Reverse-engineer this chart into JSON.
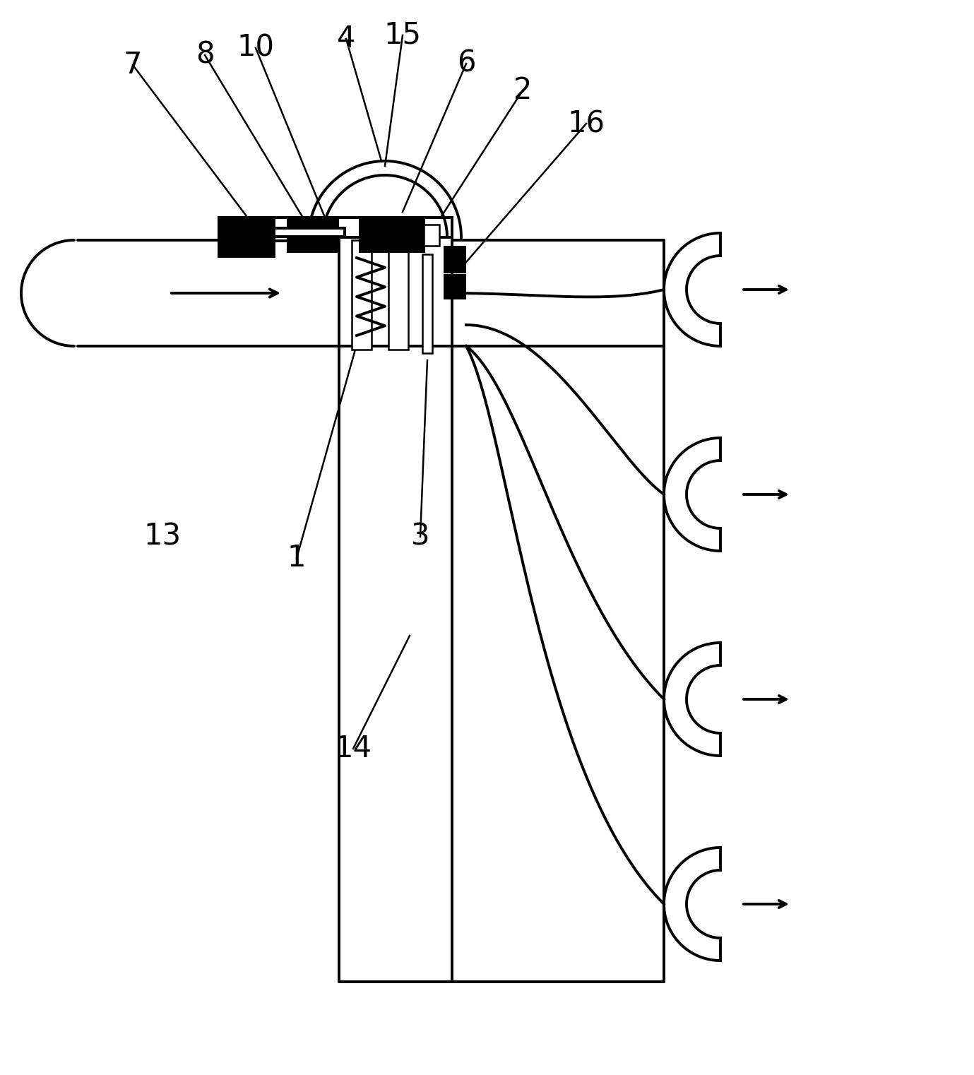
{
  "bg_color": "#ffffff",
  "line_color": "#000000",
  "lw": 2.8,
  "lw_thin": 1.8,
  "fig_width": 13.79,
  "fig_height": 15.22
}
